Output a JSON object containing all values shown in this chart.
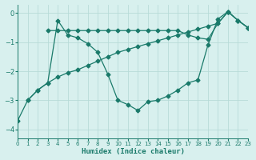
{
  "line_a_x": [
    3,
    4,
    5,
    6,
    7,
    8,
    9,
    10,
    11,
    12,
    13,
    14,
    15,
    16,
    17,
    18,
    19,
    20,
    21,
    22,
    23
  ],
  "line_a_y": [
    -0.6,
    -0.6,
    -0.6,
    -0.6,
    -0.6,
    -0.6,
    -0.6,
    -0.6,
    -0.6,
    -0.6,
    -0.6,
    -0.6,
    -0.6,
    -0.6,
    -0.75,
    -0.85,
    -0.9,
    -0.35,
    0.05,
    -0.25,
    -0.5
  ],
  "line_b_x": [
    0,
    1,
    2,
    3,
    4,
    5,
    6,
    7,
    8,
    9,
    10,
    11,
    12,
    13,
    14,
    15,
    16,
    17,
    18,
    19,
    20,
    21,
    22,
    23
  ],
  "line_b_y": [
    -3.7,
    -3.0,
    -2.65,
    -2.4,
    -0.25,
    -0.75,
    -0.85,
    -1.05,
    -1.35,
    -2.1,
    -3.0,
    -3.15,
    -3.35,
    -3.05,
    -3.0,
    -2.85,
    -2.65,
    -2.4,
    -2.3,
    -1.1,
    -0.2,
    0.05,
    -0.25,
    -0.5
  ],
  "line_c_x": [
    1,
    2,
    3,
    4,
    5,
    6,
    7,
    8,
    9,
    10,
    11,
    12,
    13,
    14,
    15,
    16,
    17,
    18,
    19,
    20,
    21,
    22,
    23
  ],
  "line_c_y": [
    -3.0,
    -2.65,
    -2.4,
    -2.2,
    -2.05,
    -1.95,
    -1.8,
    -1.65,
    -1.5,
    -1.35,
    -1.25,
    -1.15,
    -1.05,
    -0.95,
    -0.85,
    -0.75,
    -0.65,
    -0.55,
    -0.45,
    -0.35,
    0.05,
    -0.25,
    -0.5
  ],
  "line_color": "#1a7a6a",
  "bg_color": "#d8f0ee",
  "grid_color": "#b8dbd8",
  "xlabel": "Humidex (Indice chaleur)",
  "ylim": [
    -4.3,
    0.3
  ],
  "xlim": [
    0,
    23
  ],
  "yticks": [
    0,
    -1,
    -2,
    -3,
    -4
  ],
  "xticks": [
    0,
    1,
    2,
    3,
    4,
    5,
    6,
    7,
    8,
    9,
    10,
    11,
    12,
    13,
    14,
    15,
    16,
    17,
    18,
    19,
    20,
    21,
    22,
    23
  ]
}
